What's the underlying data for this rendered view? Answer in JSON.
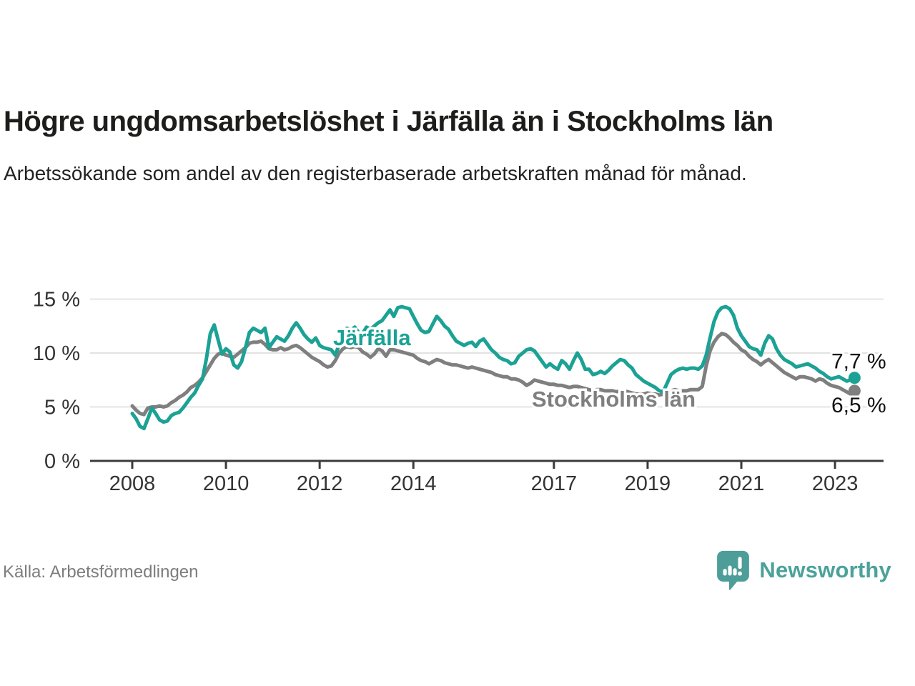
{
  "header": {
    "title": "Högre ungdomsarbetslöshet i Järfälla än i Stockholms län",
    "subtitle": "Arbetssökande som andel av den registerbaserade arbetskraften månad för månad."
  },
  "chart_data": {
    "type": "line",
    "unit": "%",
    "frequency": "monthly",
    "x_start": "2008-01",
    "x_end": "2023-06",
    "grid": "horizontal-only",
    "ylim": [
      0,
      15
    ],
    "yticks": [
      {
        "value": 0,
        "label": "0 %"
      },
      {
        "value": 5,
        "label": "5 %"
      },
      {
        "value": 10,
        "label": "10 %"
      },
      {
        "value": 15,
        "label": "15 %"
      }
    ],
    "xticks": [
      {
        "year": 2008,
        "label": "2008"
      },
      {
        "year": 2010,
        "label": "2010"
      },
      {
        "year": 2012,
        "label": "2012"
      },
      {
        "year": 2014,
        "label": "2014"
      },
      {
        "year": 2017,
        "label": "2017"
      },
      {
        "year": 2019,
        "label": "2019"
      },
      {
        "year": 2021,
        "label": "2021"
      },
      {
        "year": 2023,
        "label": "2023"
      }
    ],
    "series": [
      {
        "name": "Stockholms län",
        "color": "#7f7f7f",
        "end_label": "6,5 %",
        "values": [
          5.1,
          4.7,
          4.4,
          4.3,
          4.9,
          5.0,
          5.0,
          5.1,
          5.0,
          5.1,
          5.4,
          5.6,
          5.9,
          6.1,
          6.4,
          6.8,
          7.0,
          7.3,
          7.7,
          8.3,
          8.9,
          9.5,
          9.9,
          10.0,
          9.8,
          9.7,
          9.6,
          9.9,
          10.2,
          10.5,
          10.9,
          11.0,
          11.0,
          11.1,
          10.8,
          10.4,
          10.3,
          10.3,
          10.5,
          10.3,
          10.4,
          10.6,
          10.7,
          10.5,
          10.2,
          9.9,
          9.6,
          9.4,
          9.2,
          8.9,
          8.7,
          8.8,
          9.3,
          10.0,
          10.4,
          10.6,
          10.5,
          10.6,
          10.5,
          10.1,
          9.9,
          9.6,
          9.9,
          10.4,
          10.2,
          9.7,
          10.3,
          10.3,
          10.2,
          10.1,
          10.0,
          9.9,
          9.8,
          9.5,
          9.3,
          9.2,
          9.0,
          9.2,
          9.4,
          9.3,
          9.1,
          9.0,
          8.9,
          8.9,
          8.8,
          8.7,
          8.6,
          8.7,
          8.6,
          8.5,
          8.4,
          8.3,
          8.2,
          8.0,
          7.9,
          7.8,
          7.8,
          7.6,
          7.6,
          7.5,
          7.3,
          7.0,
          7.2,
          7.5,
          7.4,
          7.3,
          7.2,
          7.1,
          7.1,
          7.0,
          7.0,
          6.9,
          6.8,
          6.9,
          6.9,
          6.8,
          6.7,
          6.6,
          6.5,
          6.6,
          6.6,
          6.5,
          6.5,
          6.5,
          6.4,
          6.5,
          6.5,
          6.4,
          6.3,
          6.2,
          6.2,
          6.2,
          6.3,
          6.2,
          6.2,
          6.1,
          6.2,
          6.3,
          6.5,
          6.6,
          6.5,
          6.5,
          6.5,
          6.6,
          6.6,
          6.6,
          6.9,
          8.8,
          10.2,
          11.0,
          11.5,
          11.8,
          11.7,
          11.4,
          11.0,
          10.7,
          10.3,
          10.1,
          9.7,
          9.4,
          9.2,
          8.9,
          9.2,
          9.4,
          9.1,
          8.8,
          8.5,
          8.2,
          8.0,
          7.8,
          7.6,
          7.8,
          7.8,
          7.7,
          7.6,
          7.4,
          7.6,
          7.5,
          7.2,
          7.0,
          6.9,
          6.8,
          6.6,
          6.4,
          6.2,
          6.5
        ]
      },
      {
        "name": "Järfälla",
        "color": "#1ba295",
        "end_label": "7,7 %",
        "values": [
          4.4,
          3.9,
          3.2,
          3.0,
          3.9,
          4.9,
          4.4,
          3.8,
          3.6,
          3.7,
          4.2,
          4.4,
          4.5,
          4.9,
          5.4,
          5.9,
          6.3,
          7.0,
          7.6,
          9.5,
          11.8,
          12.6,
          11.2,
          9.9,
          10.4,
          10.1,
          8.9,
          8.6,
          9.2,
          10.5,
          11.9,
          12.3,
          12.1,
          11.9,
          12.3,
          10.5,
          11.0,
          11.5,
          11.3,
          11.1,
          11.6,
          12.3,
          12.8,
          12.3,
          11.7,
          11.3,
          11.0,
          11.4,
          10.7,
          10.5,
          10.4,
          10.3,
          9.8,
          10.8,
          11.9,
          12.3,
          12.1,
          12.4,
          11.9,
          11.8,
          12.4,
          12.2,
          12.5,
          12.8,
          13.0,
          13.5,
          14.0,
          13.4,
          14.2,
          14.3,
          14.2,
          14.1,
          13.4,
          12.7,
          12.1,
          11.9,
          12.0,
          12.7,
          13.4,
          13.0,
          12.5,
          12.2,
          11.6,
          11.1,
          10.9,
          10.7,
          10.9,
          11.0,
          10.6,
          11.1,
          11.3,
          10.8,
          10.3,
          10.0,
          9.6,
          9.4,
          9.3,
          9.0,
          9.1,
          9.7,
          10.0,
          10.3,
          10.4,
          10.2,
          9.7,
          9.2,
          8.7,
          9.0,
          8.7,
          8.5,
          9.3,
          9.0,
          8.5,
          9.3,
          10.0,
          9.4,
          8.5,
          8.5,
          8.0,
          8.1,
          8.3,
          8.1,
          8.4,
          8.8,
          9.1,
          9.4,
          9.3,
          8.9,
          8.6,
          8.0,
          7.7,
          7.4,
          7.2,
          7.0,
          6.8,
          6.5,
          6.4,
          7.2,
          8.0,
          8.3,
          8.5,
          8.6,
          8.5,
          8.6,
          8.6,
          8.5,
          8.8,
          9.8,
          11.4,
          12.9,
          13.8,
          14.2,
          14.3,
          14.1,
          13.5,
          12.3,
          11.6,
          11.1,
          10.6,
          10.4,
          10.3,
          9.8,
          10.9,
          11.6,
          11.3,
          10.4,
          9.8,
          9.4,
          9.2,
          9.0,
          8.7,
          8.8,
          8.9,
          9.0,
          8.8,
          8.6,
          8.3,
          8.1,
          7.8,
          7.6,
          7.7,
          7.8,
          7.6,
          7.4,
          7.5,
          7.7
        ]
      }
    ]
  },
  "footer": {
    "source": "Källa: Arbetsförmedlingen",
    "brand": "Newsworthy",
    "brand_color": "#4ba29a"
  }
}
